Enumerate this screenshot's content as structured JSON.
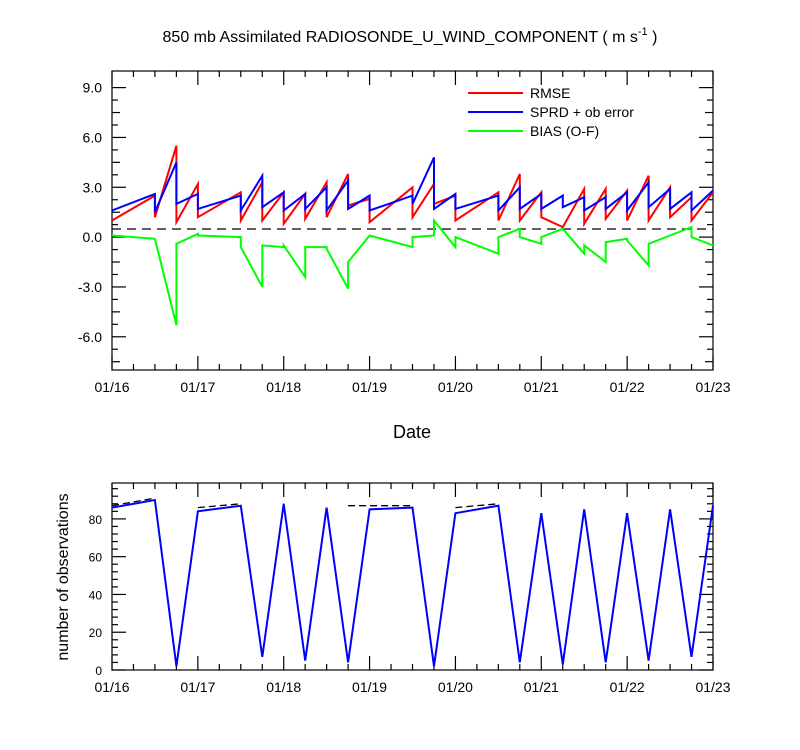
{
  "chart_data": [
    {
      "type": "line",
      "title": "850 mb Assimilated RADIOSONDE_U_WIND_COMPONENT ( m s",
      "title_sup": "-1",
      "title_end": " )",
      "xlabel": "Date",
      "ylabel": "",
      "ylim": [
        -8.0,
        10.0
      ],
      "xlim": [
        0,
        7
      ],
      "x_tick_labels": [
        "01/16",
        "01/17",
        "01/18",
        "01/19",
        "01/20",
        "01/21",
        "01/22",
        "01/23"
      ],
      "y_tick_labels": [
        "9.0",
        "6.0",
        "3.0",
        "0.0",
        "-3.0",
        "-6.0"
      ],
      "y_tick_values": [
        9,
        6,
        3,
        0,
        -3,
        -6
      ],
      "reference_line": 0,
      "legend_position": "top-right",
      "colors": {
        "RMSE": "#ff0000",
        "SPRD + ob error": "#0000ff",
        "BIAS (O-F)": "#00ff00",
        "zero_line": "#000000"
      },
      "x": [
        0.0,
        0.5,
        0.5,
        0.75,
        0.75,
        1.0,
        1.0,
        1.5,
        1.5,
        1.75,
        1.75,
        2.0,
        2.0,
        2.25,
        2.25,
        2.5,
        2.5,
        2.75,
        2.75,
        3.0,
        3.0,
        3.5,
        3.5,
        3.75,
        3.75,
        4.0,
        4.0,
        4.5,
        4.5,
        4.75,
        4.75,
        5.0,
        5.0,
        5.25,
        5.25,
        5.5,
        5.5,
        5.75,
        5.75,
        6.0,
        6.0,
        6.25,
        6.25,
        6.5,
        6.5,
        6.75,
        6.75,
        7.0
      ],
      "series": [
        {
          "name": "RMSE",
          "values": [
            1.0,
            2.5,
            1.2,
            5.5,
            0.9,
            3.2,
            1.2,
            2.7,
            1.0,
            3.3,
            1.0,
            2.7,
            0.8,
            2.6,
            1.1,
            3.3,
            1.2,
            3.8,
            1.9,
            2.3,
            0.9,
            3.0,
            1.2,
            3.2,
            2.0,
            2.5,
            1.0,
            2.7,
            1.0,
            3.8,
            1.0,
            2.7,
            1.2,
            0.6,
            0.6,
            2.9,
            0.8,
            2.9,
            1.1,
            2.8,
            1.0,
            3.7,
            1.0,
            3.0,
            1.2,
            2.4,
            1.0,
            2.7
          ]
        },
        {
          "name": "SPRD + ob error",
          "values": [
            1.6,
            2.6,
            1.5,
            4.5,
            2.0,
            2.6,
            1.7,
            2.5,
            1.6,
            3.7,
            1.8,
            2.7,
            1.6,
            2.6,
            1.7,
            3.0,
            1.6,
            3.4,
            1.7,
            2.5,
            1.6,
            2.5,
            2.0,
            4.8,
            1.7,
            2.6,
            1.7,
            2.5,
            1.6,
            3.0,
            1.7,
            2.6,
            1.7,
            2.5,
            1.8,
            2.4,
            1.6,
            2.4,
            1.7,
            2.7,
            1.6,
            3.3,
            1.8,
            2.9,
            1.7,
            2.7,
            1.6,
            2.8
          ]
        },
        {
          "name": "BIAS (O-F)",
          "values": [
            0.1,
            -0.1,
            -0.1,
            -5.3,
            -0.4,
            0.2,
            0.1,
            0.0,
            -0.6,
            -3.0,
            -0.5,
            -0.6,
            -0.5,
            -2.4,
            -0.6,
            -0.6,
            -0.7,
            -3.1,
            -1.5,
            0.1,
            0.1,
            -0.6,
            0.0,
            0.1,
            1.0,
            -0.6,
            0.0,
            -1.0,
            0.0,
            0.5,
            0.0,
            -0.4,
            0.0,
            0.5,
            0.5,
            -1.0,
            -0.5,
            -1.5,
            -0.3,
            -0.1,
            -0.2,
            -1.7,
            -0.4,
            0.1,
            0.1,
            0.6,
            0.0,
            -0.5
          ]
        }
      ]
    },
    {
      "type": "line",
      "title": "",
      "xlabel": "",
      "ylabel": "number of observations",
      "ylim": [
        0,
        99
      ],
      "xlim": [
        0,
        7
      ],
      "x_tick_labels": [
        "01/16",
        "01/17",
        "01/18",
        "01/19",
        "01/20",
        "01/21",
        "01/22",
        "01/23"
      ],
      "y_tick_labels": [
        "80",
        "60",
        "40",
        "20",
        "0"
      ],
      "y_tick_values": [
        80,
        60,
        40,
        20,
        0
      ],
      "colors": {
        "assimilated": "#0000ff",
        "total": "#000000"
      },
      "series": [
        {
          "style": "dashed",
          "x": [
            0,
            0.5,
            null,
            1.0,
            1.5,
            null,
            2.0,
            null,
            2.25,
            null,
            2.75,
            3.5,
            null,
            4.0,
            4.5,
            null,
            5.0,
            null,
            5.5,
            null,
            6.0,
            null,
            6.5,
            null,
            7.0
          ],
          "values": [
            87,
            91,
            null,
            86,
            88,
            null,
            89,
            null,
            87,
            null,
            87,
            87,
            null,
            86,
            88,
            null,
            88,
            null,
            88,
            null,
            87,
            null,
            88,
            null,
            88
          ]
        },
        {
          "style": "solid",
          "x": [
            0,
            0.5,
            0.75,
            1.0,
            1.5,
            1.75,
            2.0,
            2.25,
            2.5,
            2.75,
            3.0,
            3.5,
            3.75,
            4.0,
            4.5,
            4.75,
            5.0,
            5.25,
            5.5,
            5.75,
            6.0,
            6.25,
            6.5,
            6.75,
            7.0
          ],
          "values": [
            86,
            90,
            2,
            84,
            87,
            7,
            88,
            5,
            86,
            4,
            85,
            86,
            2,
            83,
            87,
            4,
            83,
            3,
            85,
            4,
            83,
            5,
            85,
            7,
            87
          ]
        }
      ]
    }
  ]
}
